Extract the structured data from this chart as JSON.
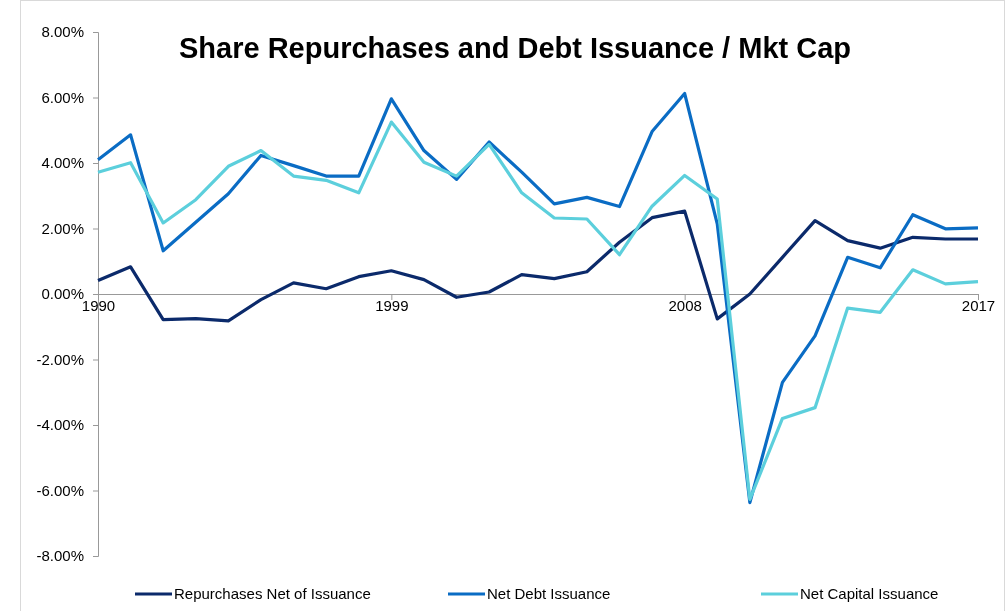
{
  "chart_data": {
    "type": "line",
    "title": "Share Repurchases and Debt Issuance / Mkt Cap",
    "x": [
      1990,
      1991,
      1992,
      1993,
      1994,
      1995,
      1996,
      1997,
      1998,
      1999,
      2000,
      2001,
      2002,
      2003,
      2004,
      2005,
      2006,
      2007,
      2008,
      2009,
      2010,
      2011,
      2012,
      2013,
      2014,
      2015,
      2016,
      2017
    ],
    "series": [
      {
        "name": "Repurchases Net of Issuance",
        "color": "#0b2a6b",
        "values": [
          0.41,
          0.83,
          -0.78,
          -0.75,
          -0.82,
          -0.17,
          0.34,
          0.16,
          0.53,
          0.71,
          0.44,
          -0.1,
          0.06,
          0.59,
          0.47,
          0.68,
          1.58,
          2.33,
          2.53,
          -0.76,
          0.0,
          1.12,
          2.24,
          1.63,
          1.4,
          1.73,
          1.68,
          1.68
        ]
      },
      {
        "name": "Net Debt Issuance",
        "color": "#0a6cc4",
        "values": [
          4.1,
          4.86,
          1.32,
          2.19,
          3.06,
          4.23,
          3.92,
          3.6,
          3.6,
          5.96,
          4.38,
          3.5,
          4.64,
          3.72,
          2.75,
          2.95,
          2.67,
          4.96,
          6.12,
          2.14,
          -6.37,
          -2.7,
          -1.28,
          1.12,
          0.8,
          2.42,
          1.99,
          2.02
        ]
      },
      {
        "name": "Net Capital Issuance",
        "color": "#5ccfdc",
        "values": [
          3.72,
          4.01,
          2.17,
          2.88,
          3.9,
          4.38,
          3.6,
          3.47,
          3.09,
          5.25,
          4.02,
          3.6,
          4.57,
          3.09,
          2.32,
          2.29,
          1.2,
          2.68,
          3.62,
          2.9,
          -6.27,
          -3.8,
          -3.47,
          -0.43,
          -0.56,
          0.74,
          0.31,
          0.38
        ]
      }
    ],
    "xlim": [
      1990,
      2017
    ],
    "xticks": [
      1990,
      1999,
      2008,
      2017
    ],
    "ylim": [
      -8,
      8
    ],
    "yticks": [
      {
        "value": -8,
        "label": "-8.00%"
      },
      {
        "value": -6,
        "label": "-6.00%"
      },
      {
        "value": -4,
        "label": "-4.00%"
      },
      {
        "value": -2,
        "label": "-2.00%"
      },
      {
        "value": 0,
        "label": "0.00%"
      },
      {
        "value": 2,
        "label": "2.00%"
      },
      {
        "value": 4,
        "label": "4.00%"
      },
      {
        "value": 6,
        "label": "6.00%"
      },
      {
        "value": 8,
        "label": "8.00%"
      }
    ],
    "grid": false,
    "legend": "bottom",
    "marker": "none",
    "line_style": "solid"
  }
}
